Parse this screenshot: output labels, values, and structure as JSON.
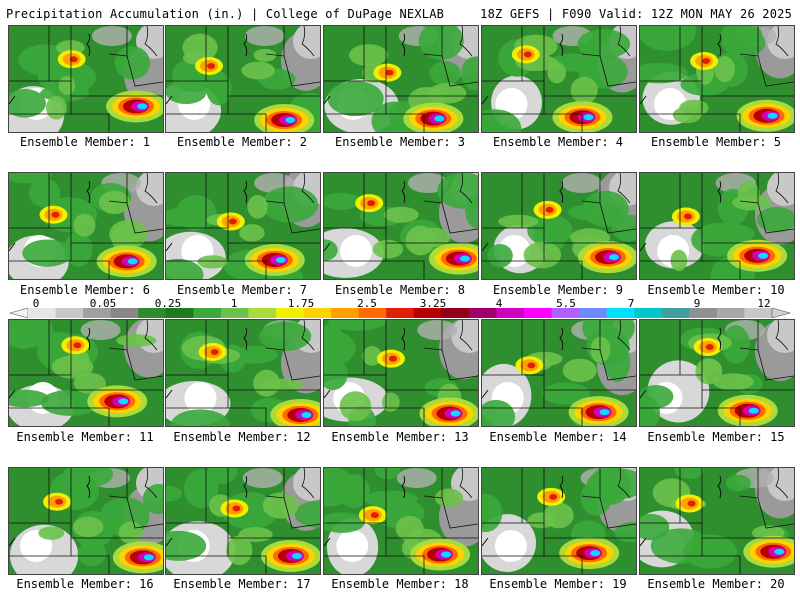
{
  "header": {
    "left": "Precipitation Accumulation (in.) | College of DuPage NEXLAB",
    "right": "18Z GEFS | F090 Valid: 12Z MON MAY 26 2025"
  },
  "panels": [
    {
      "label": "Ensemble Member: 1"
    },
    {
      "label": "Ensemble Member: 2"
    },
    {
      "label": "Ensemble Member: 3"
    },
    {
      "label": "Ensemble Member: 4"
    },
    {
      "label": "Ensemble Member: 5"
    },
    {
      "label": "Ensemble Member: 6"
    },
    {
      "label": "Ensemble Member: 7"
    },
    {
      "label": "Ensemble Member: 8"
    },
    {
      "label": "Ensemble Member: 9"
    },
    {
      "label": "Ensemble Member: 10"
    },
    {
      "label": "Ensemble Member: 11"
    },
    {
      "label": "Ensemble Member: 12"
    },
    {
      "label": "Ensemble Member: 13"
    },
    {
      "label": "Ensemble Member: 14"
    },
    {
      "label": "Ensemble Member: 15"
    },
    {
      "label": "Ensemble Member: 16"
    },
    {
      "label": "Ensemble Member: 17"
    },
    {
      "label": "Ensemble Member: 18"
    },
    {
      "label": "Ensemble Member: 19"
    },
    {
      "label": "Ensemble Member: 20"
    }
  ],
  "colorbar": {
    "labels": [
      "0",
      "0.05",
      "0.25",
      "1",
      "1.75",
      "2.5",
      "3.25",
      "4",
      "5.5",
      "7",
      "9",
      "12"
    ],
    "colors": [
      "#e6e6e6",
      "#c8c8c8",
      "#a0a0a0",
      "#888888",
      "#2e8b2e",
      "#1e7a1e",
      "#3aa83a",
      "#6cc24a",
      "#a8dc3c",
      "#f0f000",
      "#ffd200",
      "#ffa000",
      "#ff6a00",
      "#e02000",
      "#b80000",
      "#900018",
      "#a0006a",
      "#d000c0",
      "#ff00ff",
      "#b060ff",
      "#6a8cff",
      "#00e0ff",
      "#00c8c8",
      "#40a0a0",
      "#909090",
      "#a8a8a8",
      "#c8c8c8"
    ]
  }
}
